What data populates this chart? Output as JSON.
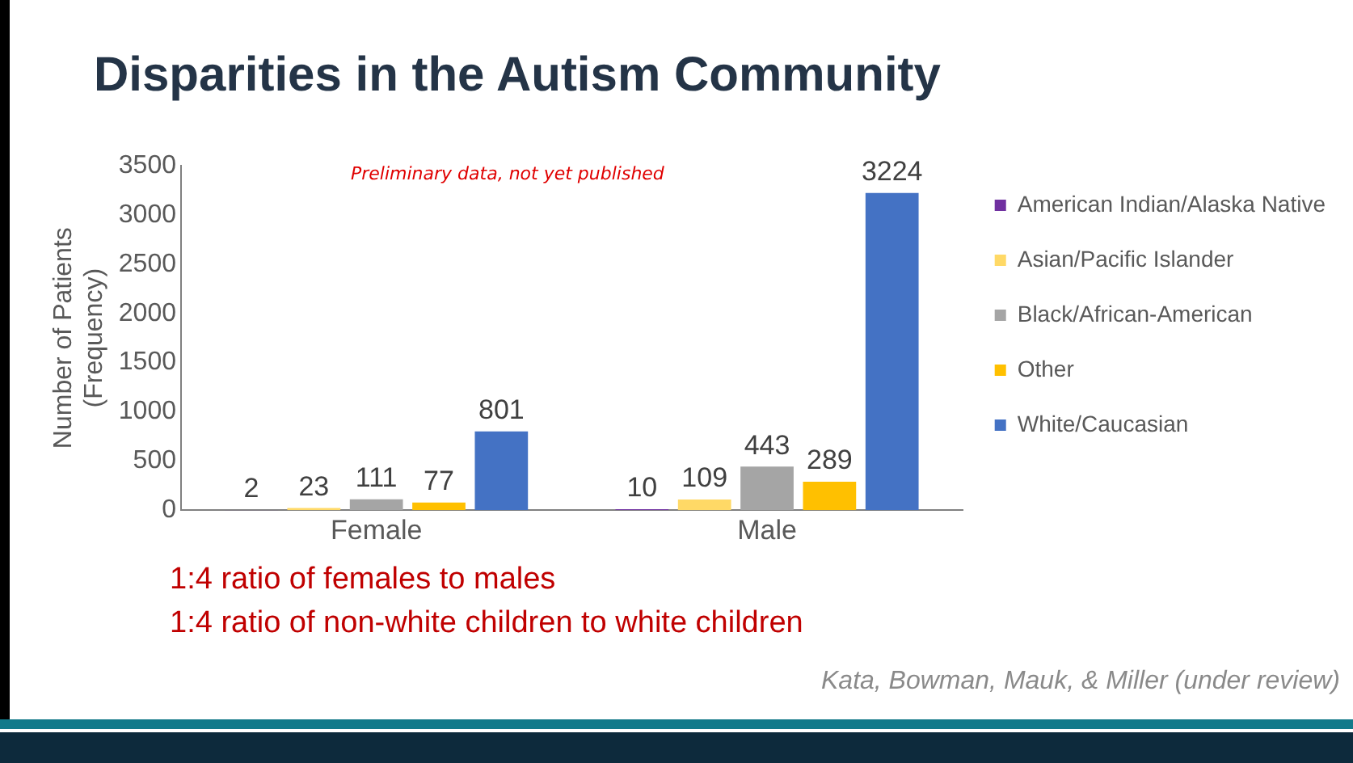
{
  "chart_data": {
    "type": "bar",
    "title": "Disparities in the Autism Community",
    "ylabel": "Number of Patients\n(Frequency)",
    "categories": [
      "Female",
      "Male"
    ],
    "series": [
      {
        "name": "American Indian/Alaska Native",
        "color": "#7030a0",
        "values": [
          2,
          10
        ]
      },
      {
        "name": "Asian/Pacific Islander",
        "color": "#ffd966",
        "values": [
          23,
          109
        ]
      },
      {
        "name": "Black/African-American",
        "color": "#a5a5a5",
        "values": [
          111,
          443
        ]
      },
      {
        "name": "Other",
        "color": "#ffc000",
        "values": [
          77,
          289
        ]
      },
      {
        "name": "White/Caucasian",
        "color": "#4472c4",
        "values": [
          801,
          3224
        ]
      }
    ],
    "ylim": [
      0,
      3500
    ],
    "yticks": [
      0,
      500,
      1000,
      1500,
      2000,
      2500,
      3000,
      3500
    ],
    "grid": false,
    "legend": "right",
    "data_labels": true,
    "annotations": [
      "Preliminary data, not yet published",
      "1:4 ratio of females to males",
      "1:4 ratio of non-white children to white children",
      "Kata, Bowman, Mauk, & Miller (under review)"
    ]
  }
}
